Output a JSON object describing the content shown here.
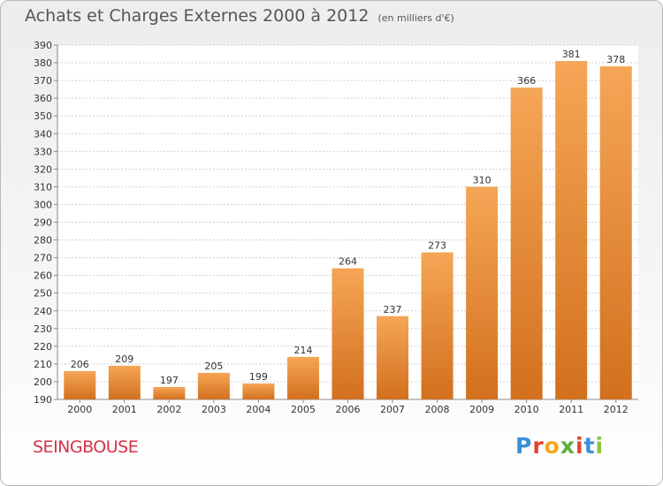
{
  "chart_data": {
    "type": "bar",
    "title": "Achats et Charges Externes 2000 à 2012",
    "subtitle": "(en milliers d'€)",
    "categories": [
      "2000",
      "2001",
      "2002",
      "2003",
      "2004",
      "2005",
      "2006",
      "2007",
      "2008",
      "2009",
      "2010",
      "2011",
      "2012"
    ],
    "values": [
      206,
      209,
      197,
      205,
      199,
      214,
      264,
      237,
      273,
      310,
      366,
      381,
      378
    ],
    "ylim": [
      190,
      390
    ],
    "yticks": [
      190,
      200,
      210,
      220,
      230,
      240,
      250,
      260,
      270,
      280,
      290,
      300,
      310,
      320,
      330,
      340,
      350,
      360,
      370,
      380,
      390
    ],
    "grid": true,
    "bar_color_top": "#f5a656",
    "bar_color_bottom": "#d2701e"
  },
  "footer": {
    "commune": "SEINGBOUSE",
    "logo": "Proxiti"
  }
}
